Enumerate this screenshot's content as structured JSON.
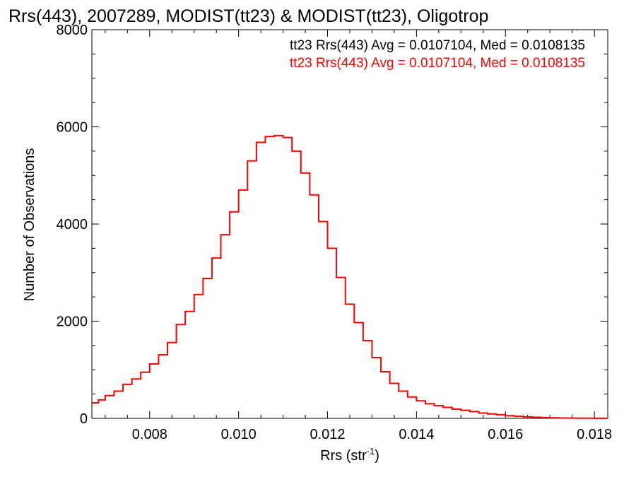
{
  "chart_data": {
    "type": "histogram",
    "title": "Rrs(443), 2007289, MODIST(tt23) & MODIST(tt23), Oligotrop",
    "xlabel": "Rrs (str",
    "xlabel_sup": "-1",
    "xlabel_suffix": ")",
    "ylabel": "Number of Observations",
    "xlim": [
      0.0067,
      0.0183
    ],
    "ylim": [
      0,
      8000
    ],
    "x_ticks": [
      {
        "value": 0.008,
        "label": "0.008"
      },
      {
        "value": 0.01,
        "label": "0.010"
      },
      {
        "value": 0.012,
        "label": "0.012"
      },
      {
        "value": 0.014,
        "label": "0.014"
      },
      {
        "value": 0.016,
        "label": "0.016"
      },
      {
        "value": 0.018,
        "label": "0.018"
      }
    ],
    "y_ticks": [
      {
        "value": 0,
        "label": "0"
      },
      {
        "value": 2000,
        "label": "2000"
      },
      {
        "value": 4000,
        "label": "4000"
      },
      {
        "value": 6000,
        "label": "6000"
      },
      {
        "value": 8000,
        "label": "8000"
      }
    ],
    "grid": false,
    "legend": [
      {
        "text": "tt23 Rrs(443) Avg = 0.0107104, Med = 0.0108135",
        "color": "#000000"
      },
      {
        "text": "tt23 Rrs(443) Avg = 0.0107104, Med = 0.0108135",
        "color": "#ff0000"
      }
    ],
    "legend_position": "top-right",
    "series": [
      {
        "color": "#ff0000",
        "step": true,
        "points": [
          [
            0.0067,
            320
          ],
          [
            0.00685,
            380
          ],
          [
            0.007,
            470
          ],
          [
            0.0072,
            560
          ],
          [
            0.0074,
            700
          ],
          [
            0.0076,
            810
          ],
          [
            0.0078,
            950
          ],
          [
            0.008,
            1120
          ],
          [
            0.0082,
            1310
          ],
          [
            0.0084,
            1560
          ],
          [
            0.0086,
            1930
          ],
          [
            0.0088,
            2200
          ],
          [
            0.009,
            2550
          ],
          [
            0.0092,
            2880
          ],
          [
            0.0094,
            3300
          ],
          [
            0.0096,
            3780
          ],
          [
            0.0098,
            4250
          ],
          [
            0.01,
            4700
          ],
          [
            0.0102,
            5300
          ],
          [
            0.0104,
            5680
          ],
          [
            0.0106,
            5800
          ],
          [
            0.0108,
            5820
          ],
          [
            0.011,
            5780
          ],
          [
            0.0112,
            5500
          ],
          [
            0.0114,
            5050
          ],
          [
            0.0116,
            4600
          ],
          [
            0.0118,
            4050
          ],
          [
            0.012,
            3500
          ],
          [
            0.0122,
            2900
          ],
          [
            0.0124,
            2350
          ],
          [
            0.0126,
            1970
          ],
          [
            0.0128,
            1600
          ],
          [
            0.013,
            1250
          ],
          [
            0.0132,
            960
          ],
          [
            0.0134,
            720
          ],
          [
            0.0136,
            560
          ],
          [
            0.0138,
            440
          ],
          [
            0.014,
            360
          ],
          [
            0.0142,
            300
          ],
          [
            0.0144,
            260
          ],
          [
            0.0146,
            225
          ],
          [
            0.0148,
            190
          ],
          [
            0.015,
            165
          ],
          [
            0.0152,
            140
          ],
          [
            0.0154,
            110
          ],
          [
            0.0156,
            90
          ],
          [
            0.0158,
            75
          ],
          [
            0.016,
            55
          ],
          [
            0.0162,
            42
          ],
          [
            0.0164,
            30
          ],
          [
            0.0166,
            22
          ],
          [
            0.0168,
            16
          ],
          [
            0.017,
            11
          ],
          [
            0.0172,
            8
          ],
          [
            0.0174,
            5
          ],
          [
            0.0176,
            4
          ],
          [
            0.0178,
            3
          ],
          [
            0.018,
            2
          ],
          [
            0.0182,
            1
          ]
        ]
      }
    ]
  }
}
